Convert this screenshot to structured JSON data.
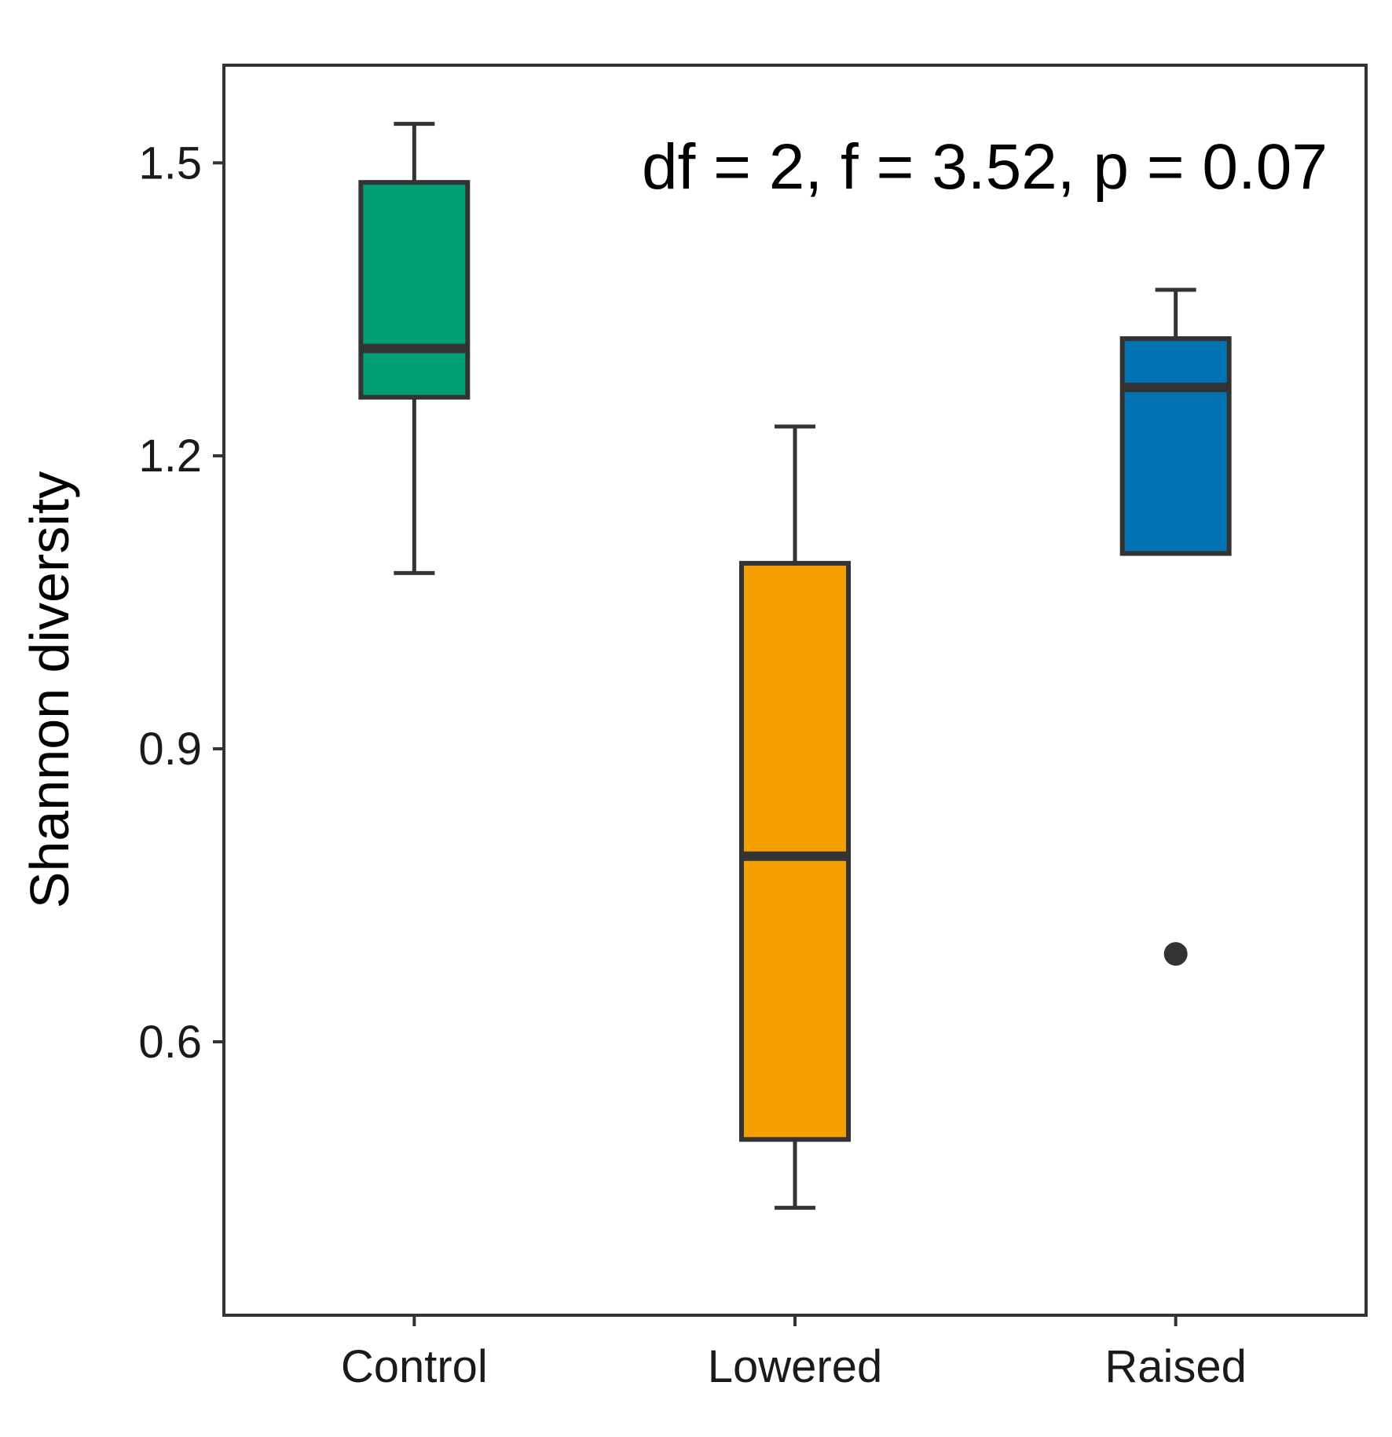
{
  "chart_data": {
    "type": "boxplot",
    "title": "",
    "xlabel": "",
    "ylabel": "Shannon diversity",
    "ylim": [
      0.32,
      1.6
    ],
    "yticks": [
      0.6,
      0.9,
      1.2,
      1.5
    ],
    "ytick_labels": [
      "0.6",
      "0.9",
      "1.2",
      "1.5"
    ],
    "annotation": "df = 2, f = 3.52, p = 0.07",
    "categories": [
      "Control",
      "Lowered",
      "Raised"
    ],
    "boxes": [
      {
        "name": "Control",
        "color": "#009E73",
        "whisker_low": 1.08,
        "q1": 1.26,
        "median": 1.31,
        "q3": 1.48,
        "whisker_high": 1.54,
        "outliers": []
      },
      {
        "name": "Lowered",
        "color": "#F5A000",
        "whisker_low": 0.43,
        "q1": 0.5,
        "median": 0.79,
        "q3": 1.09,
        "whisker_high": 1.23,
        "outliers": []
      },
      {
        "name": "Raised",
        "color": "#0072B2",
        "whisker_low": 1.1,
        "q1": 1.1,
        "median": 1.27,
        "q3": 1.32,
        "whisker_high": 1.37,
        "outliers": [
          0.69
        ]
      }
    ],
    "grid": false
  }
}
